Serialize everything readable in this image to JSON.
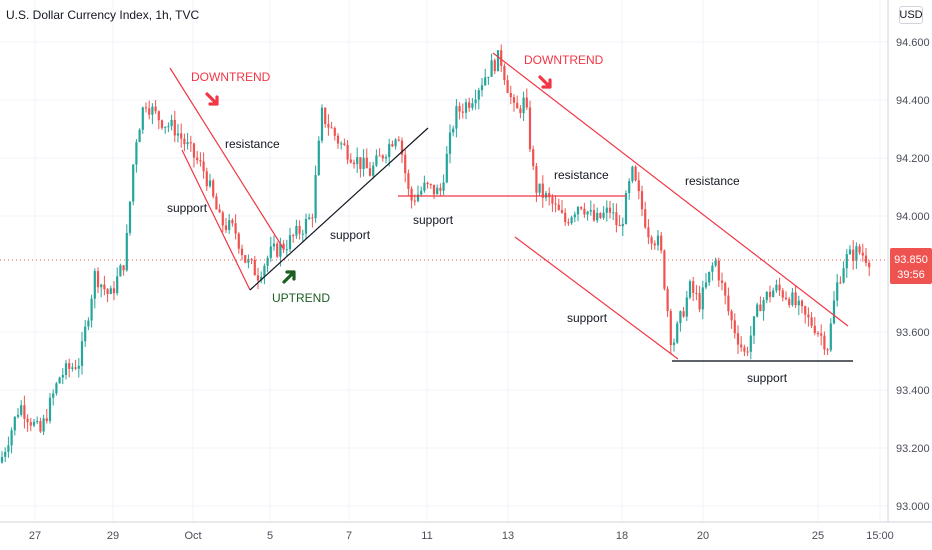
{
  "header": {
    "title": "U.S. Dollar Currency Index, 1h, TVC",
    "currency": "USD"
  },
  "price_tag": {
    "price": "93.850",
    "countdown": "39:56"
  },
  "colors": {
    "up": "#26a69a",
    "down": "#ef5350",
    "trendline_red": "#f23645",
    "trendline_black": "#131722",
    "support_dark": "#2a2e39",
    "uptrend_green": "#1b5e20",
    "price_tag": "#ef5350",
    "grid": "#f0f3fa",
    "text": "#131722",
    "axis_text": "#4a4e5a"
  },
  "annotations": [
    {
      "text": "DOWNTREND",
      "color": "#f23645",
      "arrow": "down"
    },
    {
      "text": "DOWNTREND",
      "color": "#f23645",
      "arrow": "down"
    },
    {
      "text": "UPTREND",
      "color": "#1b5e20",
      "arrow": "up"
    },
    {
      "text": "resistance"
    },
    {
      "text": "support"
    },
    {
      "text": "support"
    },
    {
      "text": "support"
    },
    {
      "text": "resistance"
    },
    {
      "text": "resistance"
    },
    {
      "text": "support"
    },
    {
      "text": "support"
    }
  ],
  "chart_data": {
    "type": "candlestick",
    "title": "U.S. Dollar Currency Index, 1h, TVC",
    "y_ticks": [
      "94.600",
      "94.400",
      "94.200",
      "94.000",
      "93.600",
      "93.400",
      "93.200",
      "93.000"
    ],
    "ylim": [
      93.0,
      94.6
    ],
    "x_ticks": [
      "27",
      "29",
      "Oct",
      "5",
      "7",
      "11",
      "13",
      "18",
      "20",
      "25",
      "15:00"
    ],
    "last_price": 93.85,
    "close_path": [
      [
        0,
        93.15
      ],
      [
        20,
        93.35
      ],
      [
        40,
        93.25
      ],
      [
        60,
        93.45
      ],
      [
        80,
        93.5
      ],
      [
        95,
        93.8
      ],
      [
        110,
        93.72
      ],
      [
        125,
        93.85
      ],
      [
        135,
        94.25
      ],
      [
        145,
        94.4
      ],
      [
        155,
        94.35
      ],
      [
        165,
        94.32
      ],
      [
        175,
        94.3
      ],
      [
        185,
        94.25
      ],
      [
        195,
        94.2
      ],
      [
        205,
        94.15
      ],
      [
        220,
        93.98
      ],
      [
        235,
        93.95
      ],
      [
        245,
        93.85
      ],
      [
        258,
        93.8
      ],
      [
        270,
        93.87
      ],
      [
        285,
        93.9
      ],
      [
        300,
        93.95
      ],
      [
        312,
        94.0
      ],
      [
        322,
        94.35
      ],
      [
        340,
        94.25
      ],
      [
        355,
        94.2
      ],
      [
        370,
        94.15
      ],
      [
        390,
        94.25
      ],
      [
        398,
        94.3
      ],
      [
        410,
        94.05
      ],
      [
        425,
        94.1
      ],
      [
        440,
        94.08
      ],
      [
        455,
        94.35
      ],
      [
        470,
        94.4
      ],
      [
        488,
        94.5
      ],
      [
        500,
        94.55
      ],
      [
        515,
        94.35
      ],
      [
        525,
        94.4
      ],
      [
        535,
        94.1
      ],
      [
        550,
        94.05
      ],
      [
        565,
        93.98
      ],
      [
        580,
        94.05
      ],
      [
        595,
        93.98
      ],
      [
        610,
        94.02
      ],
      [
        620,
        93.95
      ],
      [
        632,
        94.15
      ],
      [
        648,
        93.95
      ],
      [
        660,
        93.9
      ],
      [
        672,
        93.55
      ],
      [
        690,
        93.75
      ],
      [
        700,
        93.7
      ],
      [
        715,
        93.85
      ],
      [
        730,
        93.65
      ],
      [
        745,
        93.52
      ],
      [
        760,
        93.7
      ],
      [
        775,
        93.75
      ],
      [
        790,
        93.72
      ],
      [
        805,
        93.65
      ],
      [
        815,
        93.62
      ],
      [
        828,
        93.55
      ],
      [
        836,
        93.75
      ],
      [
        845,
        93.85
      ],
      [
        858,
        93.88
      ],
      [
        870,
        93.85
      ]
    ]
  }
}
